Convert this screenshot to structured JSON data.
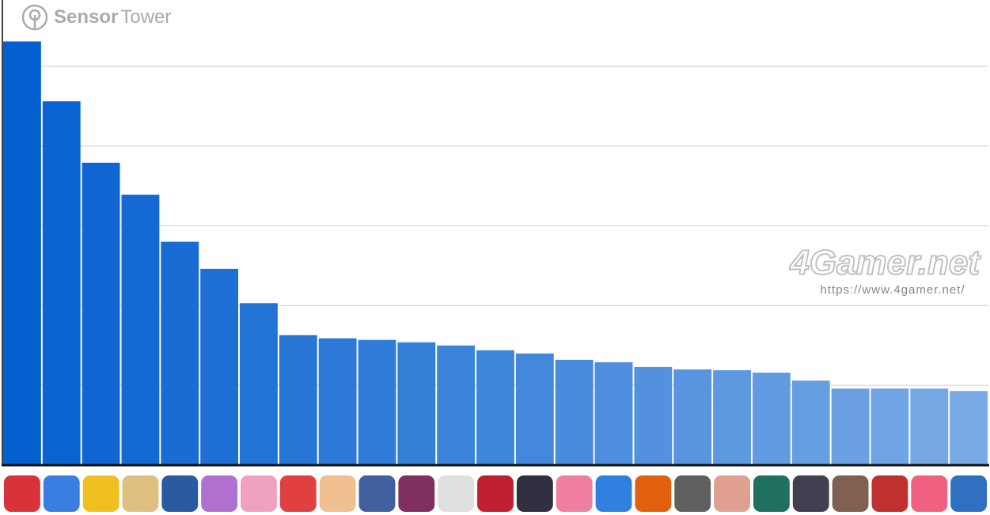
{
  "chart_data": {
    "type": "bar",
    "categories": [
      null,
      null,
      null,
      null,
      null,
      null,
      null,
      null,
      null,
      null,
      null,
      null,
      null,
      null,
      null,
      null,
      null,
      null,
      null,
      null,
      null,
      null,
      null,
      null,
      null
    ],
    "values": [
      5.31,
      4.56,
      3.79,
      3.39,
      2.8,
      2.46,
      2.03,
      1.63,
      1.59,
      1.57,
      1.54,
      1.5,
      1.44,
      1.4,
      1.32,
      1.29,
      1.23,
      1.2,
      1.19,
      1.16,
      1.06,
      0.96,
      0.96,
      0.96,
      0.93
    ],
    "colors": [
      "#0560d0",
      "#0a63d1",
      "#0f66d2",
      "#1469d3",
      "#186cd4",
      "#1d6fd5",
      "#2273d6",
      "#2776d6",
      "#2c79d7",
      "#317cd8",
      "#367fd9",
      "#3b82da",
      "#3f85db",
      "#4488dc",
      "#498bdd",
      "#4e8ede",
      "#5391df",
      "#5894e0",
      "#5d98e1",
      "#629be1",
      "#669ee2",
      "#6ba1e3",
      "#70a4e4",
      "#75a7e5",
      "#7aaae6"
    ],
    "ylim": [
      0,
      5.83
    ],
    "yticks": [
      1,
      2,
      3,
      4,
      5
    ],
    "grid": true,
    "watermarks": {
      "brand_bold": "Sensor",
      "brand_light": "Tower",
      "site": "4Gamer.net",
      "url": "https://www.4gamer.net/"
    }
  }
}
